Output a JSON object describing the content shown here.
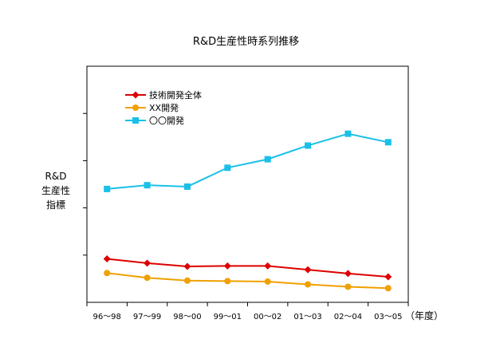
{
  "chart_data": {
    "type": "line",
    "title": "R&D生産性時系列推移",
    "ylabel_lines": [
      "R&D",
      "生産性",
      "指標"
    ],
    "xlabel": "",
    "x_unit": "（年度）",
    "categories": [
      "96～98",
      "97～99",
      "98～00",
      "99～01",
      "00～02",
      "01～03",
      "02～04",
      "03～05"
    ],
    "ylim": [
      0,
      5
    ],
    "ygrid": false,
    "legend_position": "top-left",
    "series": [
      {
        "name": "技術開発全体",
        "color": "#dd0000",
        "marker": "diamond",
        "values": [
          0.92,
          0.83,
          0.76,
          0.77,
          0.77,
          0.69,
          0.61,
          0.54
        ]
      },
      {
        "name": "XX開発",
        "color": "#f0a000",
        "marker": "circle",
        "values": [
          0.62,
          0.52,
          0.46,
          0.45,
          0.44,
          0.38,
          0.33,
          0.3
        ]
      },
      {
        "name": "〇〇開発",
        "color": "#19c0e8",
        "marker": "square",
        "values": [
          2.4,
          2.48,
          2.45,
          2.85,
          3.03,
          3.32,
          3.57,
          3.39
        ]
      }
    ]
  }
}
